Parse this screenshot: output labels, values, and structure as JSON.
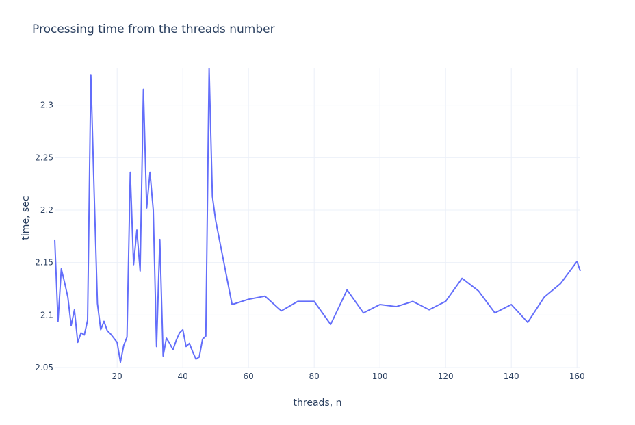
{
  "chart_data": {
    "type": "line",
    "title": "Processing time from the threads number",
    "xlabel": "threads, n",
    "ylabel": "time, sec",
    "xlim": [
      1,
      161
    ],
    "ylim": [
      2.05,
      2.335
    ],
    "xticks": [
      20,
      40,
      60,
      80,
      100,
      120,
      140,
      160
    ],
    "yticks": [
      2.05,
      2.1,
      2.15,
      2.2,
      2.25,
      2.3
    ],
    "ytick_labels": [
      "2.05",
      "2.1",
      "2.15",
      "2.2",
      "2.25",
      "2.3"
    ],
    "grid": true,
    "line_color": "#636efa",
    "x": [
      1,
      2,
      3,
      4,
      5,
      6,
      7,
      8,
      9,
      10,
      11,
      12,
      13,
      14,
      15,
      16,
      17,
      18,
      19,
      20,
      21,
      22,
      23,
      24,
      25,
      26,
      27,
      28,
      29,
      30,
      31,
      32,
      33,
      34,
      35,
      36,
      37,
      38,
      39,
      40,
      41,
      42,
      43,
      44,
      45,
      46,
      47,
      48,
      49,
      50,
      55,
      60,
      65,
      70,
      75,
      80,
      85,
      90,
      95,
      100,
      105,
      110,
      115,
      120,
      125,
      130,
      135,
      140,
      145,
      150,
      155,
      160,
      161
    ],
    "y": [
      2.172,
      2.094,
      2.144,
      2.131,
      2.117,
      2.09,
      2.105,
      2.074,
      2.083,
      2.081,
      2.095,
      2.329,
      2.217,
      2.111,
      2.086,
      2.094,
      2.085,
      2.082,
      2.078,
      2.074,
      2.055,
      2.071,
      2.079,
      2.236,
      2.148,
      2.181,
      2.142,
      2.315,
      2.202,
      2.236,
      2.2,
      2.07,
      2.172,
      2.061,
      2.078,
      2.073,
      2.067,
      2.076,
      2.083,
      2.086,
      2.07,
      2.073,
      2.065,
      2.058,
      2.06,
      2.077,
      2.08,
      2.335,
      2.213,
      2.19,
      2.11,
      2.115,
      2.118,
      2.104,
      2.113,
      2.113,
      2.091,
      2.124,
      2.102,
      2.11,
      2.108,
      2.113,
      2.105,
      2.113,
      2.135,
      2.123,
      2.102,
      2.11,
      2.093,
      2.117,
      2.13,
      2.151,
      2.142
    ]
  }
}
